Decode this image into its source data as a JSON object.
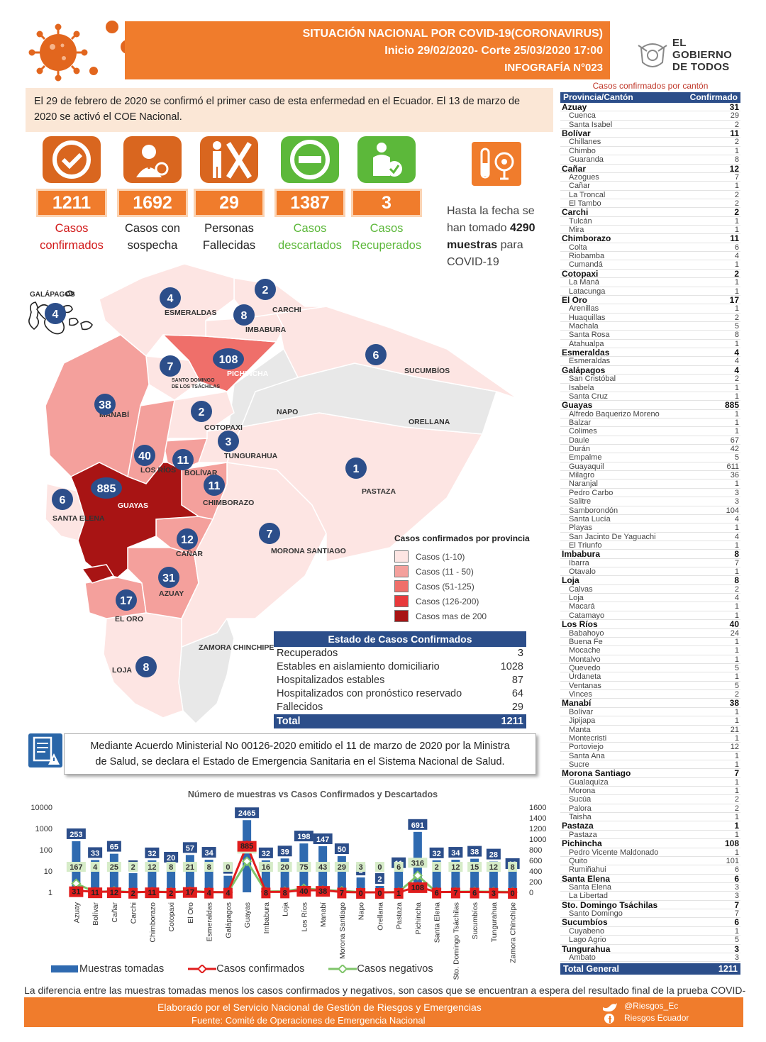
{
  "header": {
    "title": "SITUACIÓN NACIONAL POR  COVID-19(CORONAVIRUS)",
    "date_range": "Inicio 29/02/2020- Corte 25/03/2020 17:00",
    "infographic": "INFOGRAFÍA N°023",
    "gov_logo_lines": [
      "EL",
      "GOBIERNO",
      "DE TODOS"
    ]
  },
  "intro": "El 29 de febrero de 2020 se confirmó el primer caso de esta enfermedad en el Ecuador. El 13 de marzo de 2020 se activó el COE Nacional.",
  "indicators": [
    {
      "value": "1211",
      "label_lines": [
        "Casos",
        "confirmados"
      ],
      "icon": "check-icon"
    },
    {
      "value": "1692",
      "label_lines": [
        "Casos con",
        "sospecha"
      ],
      "icon": "doctor-icon"
    },
    {
      "value": "29",
      "label_lines": [
        "Personas",
        "Fallecidas"
      ],
      "icon": "deceased-icon"
    },
    {
      "value": "1387",
      "label_lines": [
        "Casos",
        "descartados"
      ],
      "icon": "minus-icon"
    },
    {
      "value": "3",
      "label_lines": [
        "Casos",
        "Recuperados"
      ],
      "icon": "recovered-icon"
    }
  ],
  "samples": {
    "line1": "Hasta la fecha se",
    "line2_pre": "han tomado ",
    "count": "4290",
    "line3_b": "muestras",
    "line3_t": " para",
    "line4": "COVID-19",
    "icon": "test-tube-icon"
  },
  "map": {
    "colors": {
      "c1": "#fde5e3",
      "c2": "#f4a09c",
      "c3": "#ef6f6a",
      "c4": "#e8393b",
      "c5": "#a81414",
      "gray": "#e8e8e8"
    },
    "provinces": [
      {
        "name": "GALÁPAGOS",
        "cases": 4
      },
      {
        "name": "ESMERALDAS",
        "cases": 4
      },
      {
        "name": "CARCHI",
        "cases": 2
      },
      {
        "name": "IMBABURA",
        "cases": 8
      },
      {
        "name": "PICHINCHA",
        "cases": 108
      },
      {
        "name": "SUCUMBÍOS",
        "cases": 6
      },
      {
        "name": "SANTO DOMINGO DE LOS TSÁCHILAS",
        "cases": 7
      },
      {
        "name": "MANABÍ",
        "cases": 38
      },
      {
        "name": "COTOPAXI",
        "cases": 2
      },
      {
        "name": "NAPO",
        "cases": null
      },
      {
        "name": "ORELLANA",
        "cases": null
      },
      {
        "name": "TUNGURAHUA",
        "cases": 3
      },
      {
        "name": "LOS RÍOS",
        "cases": 40
      },
      {
        "name": "BOLÍVAR",
        "cases": 11
      },
      {
        "name": "PASTAZA",
        "cases": 1
      },
      {
        "name": "GUAYAS",
        "cases": 885
      },
      {
        "name": "CHIMBORAZO",
        "cases": 11
      },
      {
        "name": "SANTA ELENA",
        "cases": 6
      },
      {
        "name": "MORONA SANTIAGO",
        "cases": 7
      },
      {
        "name": "CAÑAR",
        "cases": 12
      },
      {
        "name": "AZUAY",
        "cases": 31
      },
      {
        "name": "EL ORO",
        "cases": 17
      },
      {
        "name": "LOJA",
        "cases": 8
      },
      {
        "name": "ZAMORA CHINCHIPE",
        "cases": null
      }
    ],
    "legend_title": "Casos confirmados por provincia",
    "legend": [
      "Casos (1-10)",
      "Casos (11 - 50)",
      "Casos (51-125)",
      "Casos (126-200)",
      "Casos mas de 200"
    ]
  },
  "status": {
    "title": "Estado de Casos Confirmados",
    "rows": [
      {
        "label": "Recuperados",
        "value": "3"
      },
      {
        "label": "Estables en aislamiento domiciliario",
        "value": "1028"
      },
      {
        "label": "Hospitalizados estables",
        "value": "87"
      },
      {
        "label": "Hospitalizados con pronóstico reservado",
        "value": "64"
      },
      {
        "label": "Fallecidos",
        "value": "29"
      }
    ],
    "total_label": "Total",
    "total_value": "1211"
  },
  "decree": {
    "line1": "Mediante Acuerdo Ministerial No 00126-2020 emitido el 11 de marzo de 2020 por la Ministra",
    "line2": "de Salud, se declara el Estado de Emergencia Sanitaria en el Sistema Nacional de Salud."
  },
  "chart_data": {
    "type": "bar",
    "title": "Número de muestras vs Casos Confirmados y Descartados",
    "categories": [
      "Azuay",
      "Bolívar",
      "Cañar",
      "Carchi",
      "Chimborazo",
      "Cotopaxi",
      "El Oro",
      "Esmeraldas",
      "Galápagos",
      "Guayas",
      "Imbabura",
      "Loja",
      "Los Ríos",
      "Manabí",
      "Morona Santiago",
      "Napo",
      "Orellana",
      "Pastaza",
      "Pichincha",
      "Santa Elena",
      "Sto. Domingo Tsáchilas",
      "Sucumbíos",
      "Tungurahua",
      "Zamora Chinchipe"
    ],
    "left_axis_ticks": [
      "10000",
      "1000",
      "100",
      "10",
      "1"
    ],
    "right_axis_ticks": [
      "1600",
      "1400",
      "1200",
      "1000",
      "800",
      "600",
      "400",
      "200",
      "0"
    ],
    "series": [
      {
        "name": "Muestras tomadas",
        "type": "bar",
        "values": [
          253,
          33,
          65,
          8,
          32,
          20,
          57,
          34,
          6,
          2465,
          32,
          39,
          198,
          147,
          50,
          5,
          2,
          11,
          691,
          32,
          34,
          38,
          28,
          10
        ]
      },
      {
        "name": "Casos confirmados",
        "type": "line",
        "values": [
          31,
          11,
          12,
          2,
          11,
          2,
          17,
          4,
          4,
          885,
          8,
          8,
          40,
          38,
          7,
          0,
          0,
          1,
          108,
          6,
          7,
          6,
          3,
          0
        ]
      },
      {
        "name": "Casos negativos",
        "type": "line",
        "values": [
          167,
          4,
          25,
          2,
          12,
          8,
          21,
          8,
          0,
          583,
          16,
          20,
          75,
          43,
          29,
          3,
          0,
          6,
          316,
          2,
          12,
          15,
          12,
          8
        ]
      }
    ],
    "colors": {
      "bars": "#2f6ab0",
      "confirmed": "#e01d1d",
      "negative": "#7fc46a"
    }
  },
  "chart_legend": [
    "Muestras tomadas",
    "Casos confirmados",
    "Casos negativos"
  ],
  "note": "La diferencia entre las muestras tomadas menos los casos confirmados y negativos, son casos que se encuentran a espera del resultado final de la prueba COVID-19",
  "footer": {
    "line1": "Elaborado por el Servicio Nacional de Gestión de Riesgos y Emergencias",
    "line2": "Fuente: Comité de Operaciones de Emergencia Nacional",
    "twitter": "@Riesgos_Ec",
    "facebook": "Riesgos Ecuador"
  },
  "canton_table": {
    "caption": "Casos confirmados por cantón",
    "header_left": "Provincia/Cantón",
    "header_right": "Confirmado",
    "rows": [
      {
        "p": true,
        "n": "Azuay",
        "v": "31"
      },
      {
        "n": "Cuenca",
        "v": "29"
      },
      {
        "n": "Santa Isabel",
        "v": "2"
      },
      {
        "p": true,
        "n": "Bolívar",
        "v": "11"
      },
      {
        "n": "Chillanes",
        "v": "2"
      },
      {
        "n": "Chimbo",
        "v": "1"
      },
      {
        "n": "Guaranda",
        "v": "8"
      },
      {
        "p": true,
        "n": "Cañar",
        "v": "12"
      },
      {
        "n": "Azogues",
        "v": "7"
      },
      {
        "n": "Cañar",
        "v": "1"
      },
      {
        "n": "La Troncal",
        "v": "2"
      },
      {
        "n": "El Tambo",
        "v": "2"
      },
      {
        "p": true,
        "n": "Carchi",
        "v": "2"
      },
      {
        "n": "Tulcán",
        "v": "1"
      },
      {
        "n": "Mira",
        "v": "1"
      },
      {
        "p": true,
        "n": "Chimborazo",
        "v": "11"
      },
      {
        "n": "Colta",
        "v": "6"
      },
      {
        "n": "Riobamba",
        "v": "4"
      },
      {
        "n": "Cumandá",
        "v": "1"
      },
      {
        "p": true,
        "n": "Cotopaxi",
        "v": "2"
      },
      {
        "n": "La Maná",
        "v": "1"
      },
      {
        "n": "Latacunga",
        "v": "1"
      },
      {
        "p": true,
        "n": "El Oro",
        "v": "17"
      },
      {
        "n": "Arenillas",
        "v": "1"
      },
      {
        "n": "Huaquillas",
        "v": "2"
      },
      {
        "n": "Machala",
        "v": "5"
      },
      {
        "n": "Santa Rosa",
        "v": "8"
      },
      {
        "n": "Atahualpa",
        "v": "1"
      },
      {
        "p": true,
        "n": "Esmeraldas",
        "v": "4"
      },
      {
        "n": "Esmeraldas",
        "v": "4"
      },
      {
        "p": true,
        "n": "Galápagos",
        "v": "4"
      },
      {
        "n": "San Cristóbal",
        "v": "2"
      },
      {
        "n": "Isabela",
        "v": "1"
      },
      {
        "n": "Santa Cruz",
        "v": "1"
      },
      {
        "p": true,
        "n": "Guayas",
        "v": "885"
      },
      {
        "n": "Alfredo Baquerizo Moreno",
        "v": "1"
      },
      {
        "n": "Balzar",
        "v": "1"
      },
      {
        "n": "Colimes",
        "v": "1"
      },
      {
        "n": "Daule",
        "v": "67"
      },
      {
        "n": "Durán",
        "v": "42"
      },
      {
        "n": "Empalme",
        "v": "5"
      },
      {
        "n": "Guayaquil",
        "v": "611"
      },
      {
        "n": "Milagro",
        "v": "36"
      },
      {
        "n": "Naranjal",
        "v": "1"
      },
      {
        "n": "Pedro Carbo",
        "v": "3"
      },
      {
        "n": "Salitre",
        "v": "3"
      },
      {
        "n": "Samborondón",
        "v": "104"
      },
      {
        "n": "Santa Lucía",
        "v": "4"
      },
      {
        "n": "Playas",
        "v": "1"
      },
      {
        "n": "San Jacinto De Yaguachi",
        "v": "4"
      },
      {
        "n": "El Triunfo",
        "v": "1"
      },
      {
        "p": true,
        "n": "Imbabura",
        "v": "8"
      },
      {
        "n": "Ibarra",
        "v": "7"
      },
      {
        "n": "Otavalo",
        "v": "1"
      },
      {
        "p": true,
        "n": "Loja",
        "v": "8"
      },
      {
        "n": "Calvas",
        "v": "2"
      },
      {
        "n": "Loja",
        "v": "4"
      },
      {
        "n": "Macará",
        "v": "1"
      },
      {
        "n": "Catamayo",
        "v": "1"
      },
      {
        "p": true,
        "n": "Los Ríos",
        "v": "40"
      },
      {
        "n": "Babahoyo",
        "v": "24"
      },
      {
        "n": "Buena Fe",
        "v": "1"
      },
      {
        "n": "Mocache",
        "v": "1"
      },
      {
        "n": "Montalvo",
        "v": "1"
      },
      {
        "n": "Quevedo",
        "v": "5"
      },
      {
        "n": "Urdaneta",
        "v": "1"
      },
      {
        "n": "Ventanas",
        "v": "5"
      },
      {
        "n": "Vinces",
        "v": "2"
      },
      {
        "p": true,
        "n": "Manabí",
        "v": "38"
      },
      {
        "n": "Bolívar",
        "v": "1"
      },
      {
        "n": "Jipijapa",
        "v": "1"
      },
      {
        "n": "Manta",
        "v": "21"
      },
      {
        "n": "Montecristi",
        "v": "1"
      },
      {
        "n": "Portoviejo",
        "v": "12"
      },
      {
        "n": "Santa Ana",
        "v": "1"
      },
      {
        "n": "Sucre",
        "v": "1"
      },
      {
        "p": true,
        "n": "Morona Santiago",
        "v": "7"
      },
      {
        "n": "Gualaquiza",
        "v": "1"
      },
      {
        "n": "Morona",
        "v": "1"
      },
      {
        "n": "Sucúa",
        "v": "2"
      },
      {
        "n": "Palora",
        "v": "2"
      },
      {
        "n": "Taisha",
        "v": "1"
      },
      {
        "p": true,
        "n": "Pastaza",
        "v": "1"
      },
      {
        "n": "Pastaza",
        "v": "1"
      },
      {
        "p": true,
        "n": "Pichincha",
        "v": "108"
      },
      {
        "n": "Pedro Vicente Maldonado",
        "v": "1"
      },
      {
        "n": "Quito",
        "v": "101"
      },
      {
        "n": "Rumiñahui",
        "v": "6"
      },
      {
        "p": true,
        "n": "Santa Elena",
        "v": "6"
      },
      {
        "n": "Santa Elena",
        "v": "3"
      },
      {
        "n": "La Libertad",
        "v": "3"
      },
      {
        "p": true,
        "n": "Sto. Domingo Tsáchilas",
        "v": "7"
      },
      {
        "n": "Santo Domingo",
        "v": "7"
      },
      {
        "p": true,
        "n": "Sucumbíos",
        "v": "6"
      },
      {
        "n": "Cuyabeno",
        "v": "1"
      },
      {
        "n": "Lago Agrio",
        "v": "5"
      },
      {
        "p": true,
        "n": "Tungurahua",
        "v": "3"
      },
      {
        "n": "Ambato",
        "v": "3"
      }
    ],
    "total_label": "Total General",
    "total_value": "1211"
  }
}
